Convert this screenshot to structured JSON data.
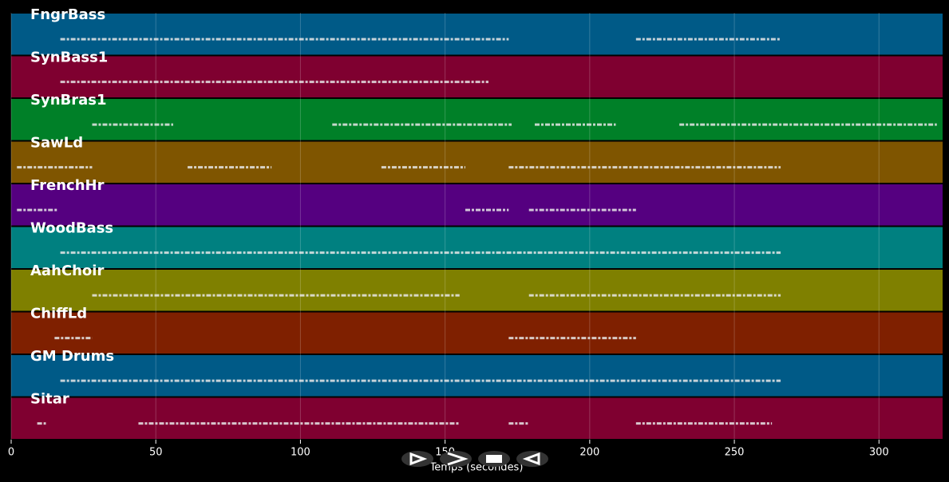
{
  "chart_data": {
    "type": "timeline",
    "xlabel": "Temps (secondes)",
    "xlim": [
      0,
      322
    ],
    "xticks": [
      0,
      50,
      100,
      150,
      200,
      250,
      300
    ],
    "grid": true,
    "tracks": [
      {
        "name": "FngrBass",
        "color": "#005a87",
        "spans": [
          [
            17,
            172
          ],
          [
            216,
            266
          ]
        ]
      },
      {
        "name": "SynBass1",
        "color": "#7f0030",
        "spans": [
          [
            17,
            165
          ]
        ]
      },
      {
        "name": "SynBras1",
        "color": "#008028",
        "spans": [
          [
            28,
            56
          ],
          [
            111,
            173
          ],
          [
            181,
            209
          ],
          [
            231,
            320
          ]
        ]
      },
      {
        "name": "SawLd",
        "color": "#7f5500",
        "spans": [
          [
            2,
            28
          ],
          [
            61,
            90
          ],
          [
            128,
            157
          ],
          [
            172,
            266
          ]
        ]
      },
      {
        "name": "FrenchHr",
        "color": "#550080",
        "spans": [
          [
            2,
            16
          ],
          [
            157,
            172
          ],
          [
            179,
            216
          ]
        ]
      },
      {
        "name": "WoodBass",
        "color": "#008080",
        "spans": [
          [
            17,
            266
          ]
        ]
      },
      {
        "name": "AahChoir",
        "color": "#7f8000",
        "spans": [
          [
            28,
            155
          ],
          [
            179,
            266
          ]
        ]
      },
      {
        "name": "ChiffLd",
        "color": "#7f2000",
        "spans": [
          [
            15,
            28
          ],
          [
            172,
            216
          ]
        ]
      },
      {
        "name": "GM Drums",
        "color": "#005a87",
        "spans": [
          [
            17,
            266
          ]
        ]
      },
      {
        "name": "Sitar",
        "color": "#7f0030",
        "spans": [
          [
            9,
            12
          ],
          [
            44,
            155
          ],
          [
            172,
            179
          ],
          [
            216,
            263
          ]
        ]
      }
    ]
  }
}
